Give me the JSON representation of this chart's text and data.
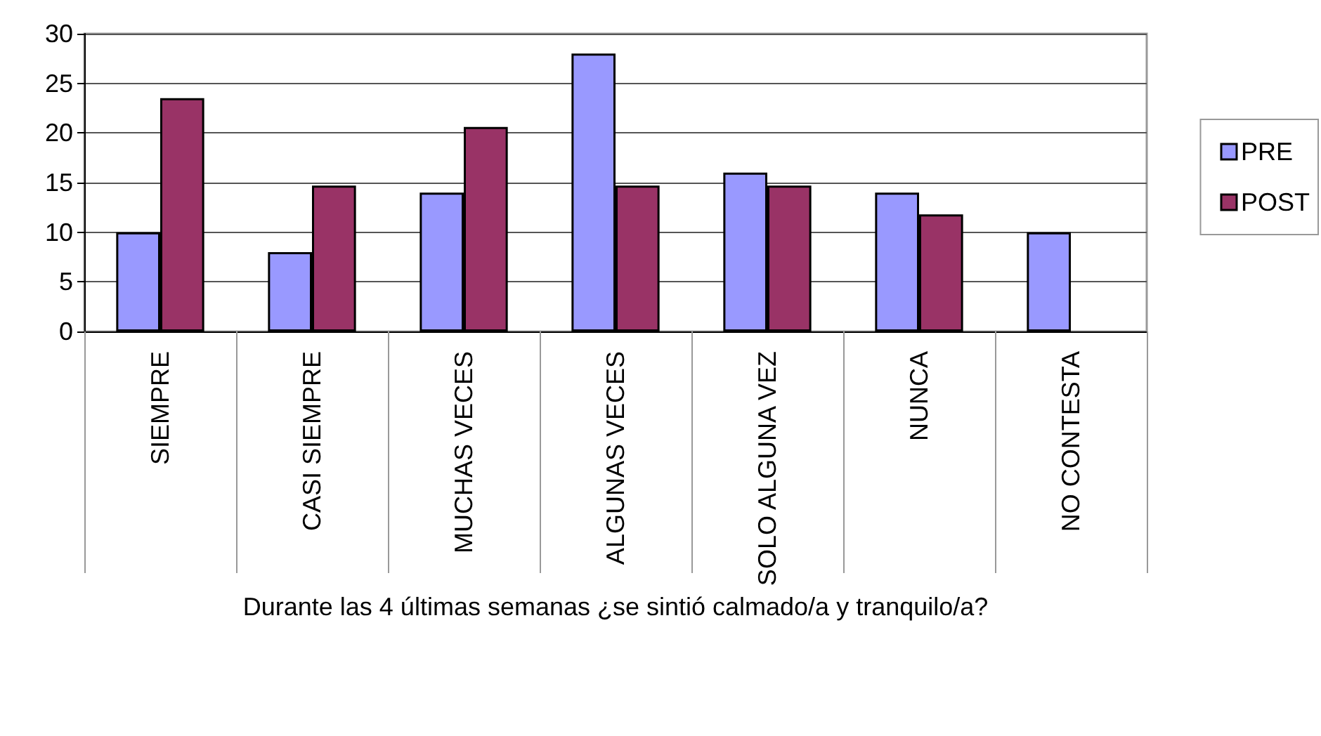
{
  "chart_data": {
    "type": "bar",
    "xlabel": "Durante las 4 últimas semanas ¿se sintió calmado/a y tranquilo/a?",
    "categories": [
      "SIEMPRE",
      "CASI SIEMPRE",
      "MUCHAS VECES",
      "ALGUNAS VECES",
      "SOLO ALGUNA VEZ",
      "NUNCA",
      "NO CONTESTA"
    ],
    "series": [
      {
        "name": "PRE",
        "color": "#9999ff",
        "values": [
          10,
          8,
          14,
          28,
          16,
          14,
          10
        ]
      },
      {
        "name": "POST",
        "color": "#993366",
        "values": [
          23.5,
          14.7,
          20.6,
          14.7,
          14.7,
          11.8,
          null
        ]
      }
    ],
    "ylim": [
      0,
      30
    ],
    "yticks": [
      0,
      5,
      10,
      15,
      20,
      25,
      30
    ],
    "grid": "y",
    "legend": "right"
  }
}
